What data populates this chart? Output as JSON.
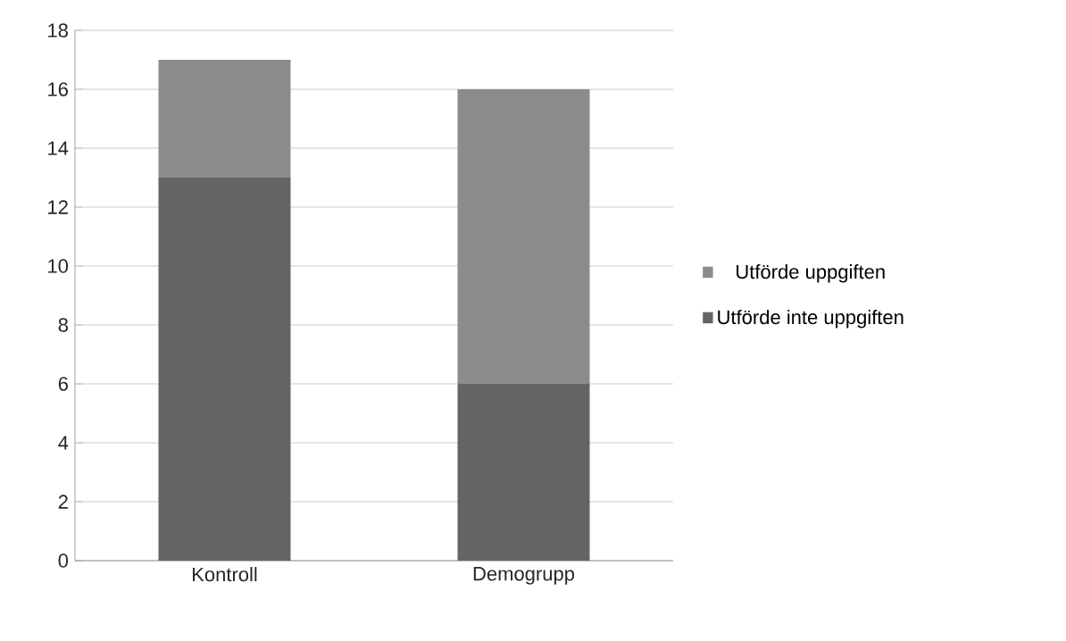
{
  "chart_data": {
    "type": "bar",
    "stacked": true,
    "categories": [
      "Kontroll",
      "Demogrupp"
    ],
    "series": [
      {
        "name": "Utförde inte uppgiften",
        "color": "#646464",
        "values": [
          13,
          6
        ]
      },
      {
        "name": "Utförde uppgiften",
        "color": "#8c8c8c",
        "values": [
          4,
          10
        ]
      }
    ],
    "ylim": [
      0,
      18
    ],
    "yticks": [
      0,
      2,
      4,
      6,
      8,
      10,
      12,
      14,
      16,
      18
    ],
    "grid": "y",
    "legend": "right"
  }
}
